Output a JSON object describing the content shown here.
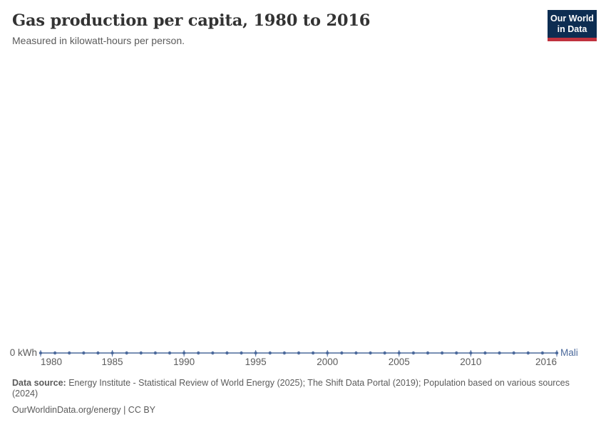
{
  "header": {
    "title": "Gas production per capita, 1980 to 2016",
    "subtitle": "Measured in kilowatt-hours per person."
  },
  "logo": {
    "line1": "Our World",
    "line2": "in Data"
  },
  "chart_data": {
    "type": "line",
    "title": "Gas production per capita, 1980 to 2016",
    "unit": "kilowatt-hours per person",
    "x": [
      1980,
      1981,
      1982,
      1983,
      1984,
      1985,
      1986,
      1987,
      1988,
      1989,
      1990,
      1991,
      1992,
      1993,
      1994,
      1995,
      1996,
      1997,
      1998,
      1999,
      2000,
      2001,
      2002,
      2003,
      2004,
      2005,
      2006,
      2007,
      2008,
      2009,
      2010,
      2011,
      2012,
      2013,
      2014,
      2015,
      2016
    ],
    "series": [
      {
        "name": "Mali",
        "color": "#4c6a9c",
        "values": [
          0,
          0,
          0,
          0,
          0,
          0,
          0,
          0,
          0,
          0,
          0,
          0,
          0,
          0,
          0,
          0,
          0,
          0,
          0,
          0,
          0,
          0,
          0,
          0,
          0,
          0,
          0,
          0,
          0,
          0,
          0,
          0,
          0,
          0,
          0,
          0,
          0
        ]
      }
    ],
    "x_ticks": [
      1980,
      1985,
      1990,
      1995,
      2000,
      2005,
      2010,
      2016
    ],
    "y_axis": {
      "zero_label": "0 kWh",
      "min": 0,
      "max": 0
    },
    "grid": false,
    "legend": "end-of-line-label"
  },
  "footer": {
    "source_label": "Data source:",
    "source_text": " Energy Institute - Statistical Review of World Energy (2025); The Shift Data Portal (2019); Population based on various sources (2024)",
    "link_line": "OurWorldinData.org/energy | CC BY"
  },
  "colors": {
    "line": "#4c6a9c",
    "axis_text": "#5b5b5b",
    "title_text": "#333333",
    "logo_bg": "#0d2d52",
    "logo_red": "#c0323e"
  }
}
